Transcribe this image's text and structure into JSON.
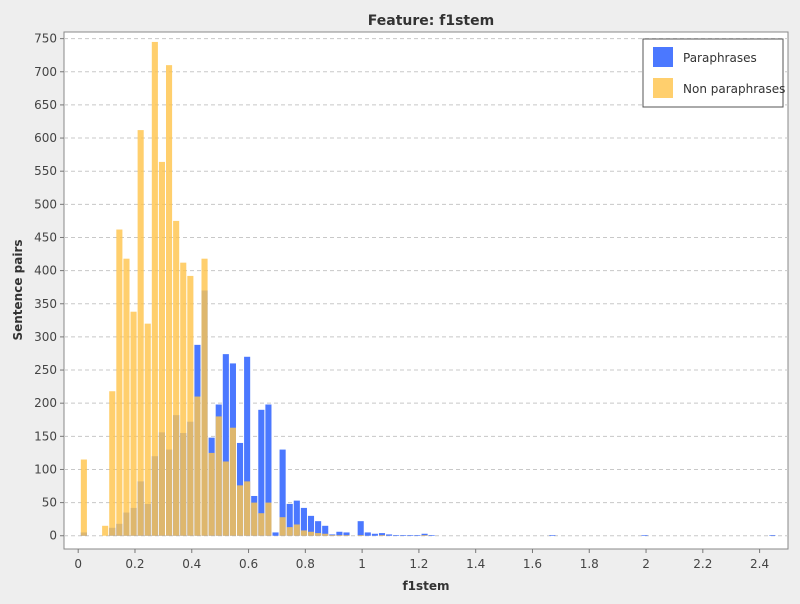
{
  "chart_data": {
    "type": "bar",
    "title": "Feature: f1stem",
    "xlabel": "f1stem",
    "ylabel": "Sentence pairs",
    "xlim": [
      -0.05,
      2.5
    ],
    "ylim": [
      -20,
      760
    ],
    "xticks": [
      "0",
      "0.2",
      "0.4",
      "0.6",
      "0.8",
      "1",
      "1.2",
      "1.4",
      "1.6",
      "1.8",
      "2",
      "2.2",
      "2.4"
    ],
    "yticks": [
      "0",
      "50",
      "100",
      "150",
      "200",
      "250",
      "300",
      "350",
      "400",
      "450",
      "500",
      "550",
      "600",
      "650",
      "700",
      "750"
    ],
    "grid": true,
    "legend_position": "top-right",
    "bin_width": 0.025,
    "bins": [
      0.02,
      0.095,
      0.12,
      0.145,
      0.17,
      0.195,
      0.22,
      0.245,
      0.27,
      0.295,
      0.32,
      0.345,
      0.37,
      0.395,
      0.42,
      0.445,
      0.47,
      0.495,
      0.52,
      0.545,
      0.57,
      0.595,
      0.62,
      0.645,
      0.67,
      0.695,
      0.72,
      0.745,
      0.77,
      0.795,
      0.82,
      0.845,
      0.87,
      0.895,
      0.92,
      0.945,
      0.97,
      0.995,
      1.02,
      1.045,
      1.07,
      1.095,
      1.12,
      1.145,
      1.17,
      1.195,
      1.22,
      1.245,
      1.67,
      1.995,
      2.445
    ],
    "series": [
      {
        "name": "Paraphrases",
        "color": "#4b78ff",
        "values": [
          5,
          0,
          12,
          18,
          35,
          42,
          82,
          48,
          120,
          156,
          130,
          182,
          155,
          172,
          288,
          370,
          148,
          198,
          274,
          260,
          140,
          270,
          60,
          190,
          198,
          5,
          130,
          48,
          53,
          42,
          30,
          22,
          15,
          2,
          6,
          5,
          0,
          22,
          5,
          3,
          4,
          2,
          1,
          1,
          1,
          1,
          3,
          1,
          1,
          1,
          1
        ]
      },
      {
        "name": "Non paraphrases",
        "color": "#ffc44d",
        "values": [
          115,
          15,
          218,
          462,
          418,
          338,
          612,
          320,
          745,
          564,
          710,
          475,
          412,
          392,
          210,
          418,
          125,
          180,
          112,
          163,
          76,
          82,
          50,
          34,
          50,
          0,
          28,
          13,
          17,
          8,
          6,
          4,
          3,
          1,
          1,
          1,
          0,
          1,
          0,
          0,
          1,
          0,
          0,
          0,
          0,
          0,
          1,
          0,
          0,
          0,
          0
        ]
      }
    ]
  }
}
